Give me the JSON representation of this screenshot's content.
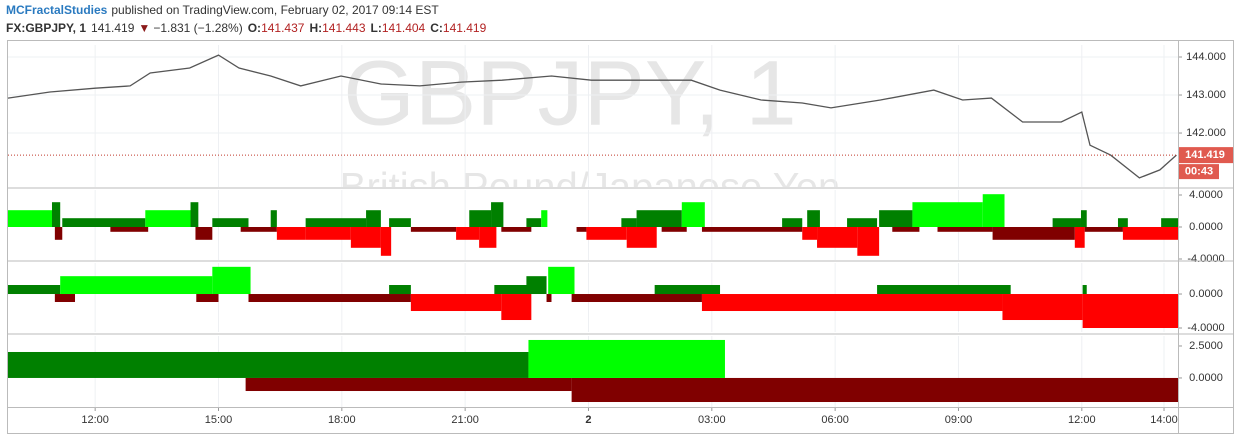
{
  "header": {
    "author": "MCFractalStudies",
    "published": "published on TradingView.com, February 02, 2017 09:14 EST",
    "symbol": "FX:GBPJPY, 1",
    "price": "141.419",
    "arrow": "▼",
    "change": "−1.831 (−1.28%)",
    "open_label": "O:",
    "open": "141.437",
    "high_label": "H:",
    "high": "141.443",
    "low_label": "L:",
    "low": "141.404",
    "close_label": "C:",
    "close": "141.419"
  },
  "chart_data": [
    {
      "type": "line",
      "watermark": "GBPJPY, 1",
      "watermark_subtitle": "British Pound/Japanese Yen",
      "color": "#555555",
      "last_price": 141.419,
      "countdown": "00:43",
      "x": [
        9.88,
        10.9,
        12,
        12.85,
        13.34,
        14.3,
        15,
        15.5,
        16.27,
        17,
        17.98,
        18.95,
        19.9,
        20.9,
        21.9,
        23.1,
        24.07,
        25.3,
        26.5,
        27.2,
        28.2,
        29.2,
        29.9,
        31.1,
        32.4,
        33.1,
        33.8,
        34.56,
        35.5,
        36,
        36.2,
        36.7,
        37.4,
        37.9,
        38.3
      ],
      "values": [
        142.92,
        143.08,
        143.18,
        143.24,
        143.58,
        143.71,
        144.05,
        143.71,
        143.5,
        143.24,
        143.5,
        143.29,
        143.24,
        143.34,
        143.39,
        143.5,
        143.39,
        143.39,
        143.39,
        143.13,
        142.87,
        142.79,
        142.66,
        142.87,
        143.13,
        142.87,
        142.92,
        142.29,
        142.29,
        142.55,
        141.68,
        141.42,
        140.82,
        141.03,
        141.42
      ],
      "xlim": [
        9.88,
        38.34
      ],
      "xticks": [
        {
          "value": 12,
          "label": "12:00"
        },
        {
          "value": 15,
          "label": "15:00"
        },
        {
          "value": 18,
          "label": "18:00"
        },
        {
          "value": 21,
          "label": "21:00"
        },
        {
          "value": 24,
          "label": "2"
        },
        {
          "value": 27,
          "label": "03:00"
        },
        {
          "value": 30,
          "label": "06:00"
        },
        {
          "value": 33,
          "label": "09:00"
        },
        {
          "value": 36,
          "label": "12:00"
        },
        {
          "value": 38,
          "label": "14:00"
        }
      ],
      "ylim": [
        140.58,
        144.316
      ],
      "yticks": [
        {
          "value": 142,
          "label": "142.000"
        },
        {
          "value": 143,
          "label": "143.000"
        },
        {
          "value": 144,
          "label": "144.000"
        }
      ],
      "grid": true
    },
    {
      "type": "bar",
      "ylim": [
        -4.125,
        4.625
      ],
      "yticks": [
        {
          "value": 4,
          "label": "4.0000"
        },
        {
          "value": 0,
          "label": "0.0000"
        },
        {
          "value": -4,
          "label": "-4.0000"
        }
      ],
      "bars": [
        {
          "x": [
            9.88,
            10.95
          ],
          "value": 2.1,
          "color": "#00ff00"
        },
        {
          "x": [
            10.95,
            11.15
          ],
          "value": 3.1,
          "color": "#008000"
        },
        {
          "x": [
            11.02,
            11.2
          ],
          "value": -1.6,
          "color": "#800000"
        },
        {
          "x": [
            11.2,
            13.22
          ],
          "value": 1.1,
          "color": "#008000"
        },
        {
          "x": [
            12.37,
            13.29
          ],
          "value": -0.6,
          "color": "#800000"
        },
        {
          "x": [
            13.22,
            14.44
          ],
          "value": 2.1,
          "color": "#00ff00"
        },
        {
          "x": [
            14.32,
            14.51
          ],
          "value": 3.1,
          "color": "#008000"
        },
        {
          "x": [
            14.44,
            14.85
          ],
          "value": -1.6,
          "color": "#800000"
        },
        {
          "x": [
            14.85,
            15.73
          ],
          "value": 1.1,
          "color": "#008000"
        },
        {
          "x": [
            15.54,
            16.42
          ],
          "value": -0.6,
          "color": "#800000"
        },
        {
          "x": [
            16.27,
            16.42
          ],
          "value": 2.1,
          "color": "#008000"
        },
        {
          "x": [
            16.42,
            17.12
          ],
          "value": -1.6,
          "color": "#ff0000"
        },
        {
          "x": [
            17.12,
            18.59
          ],
          "value": 1.1,
          "color": "#008000"
        },
        {
          "x": [
            18.59,
            18.95
          ],
          "value": 2.1,
          "color": "#008000"
        },
        {
          "x": [
            17.12,
            18.22
          ],
          "value": -1.6,
          "color": "#ff0000"
        },
        {
          "x": [
            18.22,
            18.95
          ],
          "value": -2.6,
          "color": "#ff0000"
        },
        {
          "x": [
            18.95,
            19.2
          ],
          "value": -3.6,
          "color": "#ff0000"
        },
        {
          "x": [
            19.15,
            19.68
          ],
          "value": 1.1,
          "color": "#008000"
        },
        {
          "x": [
            19.68,
            20.78
          ],
          "value": -0.6,
          "color": "#800000"
        },
        {
          "x": [
            20.78,
            21.34
          ],
          "value": -1.6,
          "color": "#ff0000"
        },
        {
          "x": [
            21.1,
            21.63
          ],
          "value": 2.1,
          "color": "#008000"
        },
        {
          "x": [
            21.34,
            21.76
          ],
          "value": -2.6,
          "color": "#ff0000"
        },
        {
          "x": [
            21.63,
            21.93
          ],
          "value": 3.1,
          "color": "#008000"
        },
        {
          "x": [
            21.88,
            22.61
          ],
          "value": -0.6,
          "color": "#800000"
        },
        {
          "x": [
            22.49,
            22.85
          ],
          "value": 1.1,
          "color": "#008000"
        },
        {
          "x": [
            22.85,
            23.0
          ],
          "value": 2.1,
          "color": "#00ff00"
        },
        {
          "x": [
            23.71,
            23.95
          ],
          "value": -0.6,
          "color": "#800000"
        },
        {
          "x": [
            23.95,
            24.93
          ],
          "value": -1.6,
          "color": "#ff0000"
        },
        {
          "x": [
            24.8,
            25.17
          ],
          "value": 1.1,
          "color": "#008000"
        },
        {
          "x": [
            24.93,
            25.66
          ],
          "value": -2.6,
          "color": "#ff0000"
        },
        {
          "x": [
            25.17,
            26.27
          ],
          "value": 2.1,
          "color": "#008000"
        },
        {
          "x": [
            25.78,
            26.39
          ],
          "value": -0.6,
          "color": "#800000"
        },
        {
          "x": [
            26.27,
            26.83
          ],
          "value": 3.1,
          "color": "#00ff00"
        },
        {
          "x": [
            26.76,
            29.2
          ],
          "value": -0.6,
          "color": "#800000"
        },
        {
          "x": [
            28.71,
            29.2
          ],
          "value": 1.1,
          "color": "#008000"
        },
        {
          "x": [
            29.2,
            29.56
          ],
          "value": -1.6,
          "color": "#ff0000"
        },
        {
          "x": [
            29.32,
            29.63
          ],
          "value": 2.1,
          "color": "#008000"
        },
        {
          "x": [
            29.56,
            30.54
          ],
          "value": -2.6,
          "color": "#ff0000"
        },
        {
          "x": [
            30.29,
            31.02
          ],
          "value": 1.1,
          "color": "#008000"
        },
        {
          "x": [
            30.54,
            31.07
          ],
          "value": -3.6,
          "color": "#ff0000"
        },
        {
          "x": [
            31.07,
            31.88
          ],
          "value": 2.1,
          "color": "#008000"
        },
        {
          "x": [
            31.39,
            32.05
          ],
          "value": -0.6,
          "color": "#800000"
        },
        {
          "x": [
            31.88,
            33.59
          ],
          "value": 3.1,
          "color": "#00ff00"
        },
        {
          "x": [
            33.59,
            34.12
          ],
          "value": 4.1,
          "color": "#00ff00"
        },
        {
          "x": [
            32.49,
            33.83
          ],
          "value": -0.6,
          "color": "#800000"
        },
        {
          "x": [
            33.83,
            35.83
          ],
          "value": -1.6,
          "color": "#800000"
        },
        {
          "x": [
            35.29,
            35.98
          ],
          "value": 1.1,
          "color": "#008000"
        },
        {
          "x": [
            35.83,
            36.07
          ],
          "value": -2.6,
          "color": "#ff0000"
        },
        {
          "x": [
            35.98,
            36.12
          ],
          "value": 2.1,
          "color": "#008000"
        },
        {
          "x": [
            36.07,
            37.0
          ],
          "value": -0.6,
          "color": "#800000"
        },
        {
          "x": [
            36.88,
            37.12
          ],
          "value": 1.1,
          "color": "#008000"
        },
        {
          "x": [
            37.0,
            38.34
          ],
          "value": -1.6,
          "color": "#ff0000"
        },
        {
          "x": [
            37.93,
            38.34
          ],
          "value": 1.1,
          "color": "#008000"
        }
      ]
    },
    {
      "type": "bar",
      "ylim": [
        -4.47,
        3.65
      ],
      "yticks": [
        {
          "value": 0,
          "label": "0.0000"
        },
        {
          "value": -4,
          "label": "-4.0000"
        }
      ],
      "bars": [
        {
          "x": [
            9.88,
            11.15
          ],
          "value": 1.06,
          "color": "#008000"
        },
        {
          "x": [
            11.02,
            11.51
          ],
          "value": -0.94,
          "color": "#800000"
        },
        {
          "x": [
            11.15,
            14.85
          ],
          "value": 2.1,
          "color": "#00ff00"
        },
        {
          "x": [
            14.46,
            15.0
          ],
          "value": -0.94,
          "color": "#800000"
        },
        {
          "x": [
            14.85,
            15.78
          ],
          "value": 3.2,
          "color": "#00ff00"
        },
        {
          "x": [
            15.73,
            19.68
          ],
          "value": -0.94,
          "color": "#800000"
        },
        {
          "x": [
            19.15,
            19.68
          ],
          "value": 1.06,
          "color": "#008000"
        },
        {
          "x": [
            19.68,
            21.88
          ],
          "value": -2.0,
          "color": "#ff0000"
        },
        {
          "x": [
            21.71,
            22.61
          ],
          "value": 1.06,
          "color": "#008000"
        },
        {
          "x": [
            21.88,
            22.61
          ],
          "value": -3.06,
          "color": "#ff0000"
        },
        {
          "x": [
            22.49,
            22.98
          ],
          "value": 2.1,
          "color": "#008000"
        },
        {
          "x": [
            22.98,
            23.1
          ],
          "value": -0.94,
          "color": "#800000"
        },
        {
          "x": [
            23.02,
            23.66
          ],
          "value": 3.2,
          "color": "#00ff00"
        },
        {
          "x": [
            23.59,
            26.76
          ],
          "value": -0.94,
          "color": "#800000"
        },
        {
          "x": [
            25.61,
            27.2
          ],
          "value": 1.06,
          "color": "#008000"
        },
        {
          "x": [
            26.76,
            34.07
          ],
          "value": -2.0,
          "color": "#ff0000"
        },
        {
          "x": [
            31.02,
            34.27
          ],
          "value": 1.06,
          "color": "#008000"
        },
        {
          "x": [
            34.07,
            36.02
          ],
          "value": -3.06,
          "color": "#ff0000"
        },
        {
          "x": [
            36.02,
            36.12
          ],
          "value": 1.06,
          "color": "#008000"
        },
        {
          "x": [
            36.02,
            38.34
          ],
          "value": -4.0,
          "color": "#ff0000"
        }
      ]
    },
    {
      "type": "bar",
      "ylim": [
        -2.27,
        3.28
      ],
      "yticks": [
        {
          "value": 2.5,
          "label": "2.5000"
        },
        {
          "value": 0,
          "label": "0.0000"
        }
      ],
      "bars": [
        {
          "x": [
            9.88,
            22.54
          ],
          "value": 2.03,
          "color": "#008000"
        },
        {
          "x": [
            15.66,
            23.59
          ],
          "value": -1.02,
          "color": "#800000"
        },
        {
          "x": [
            23.59,
            38.34
          ],
          "value": -1.88,
          "color": "#800000"
        },
        {
          "x": [
            22.54,
            27.32
          ],
          "value": 2.97,
          "color": "#00ff00"
        }
      ]
    }
  ]
}
